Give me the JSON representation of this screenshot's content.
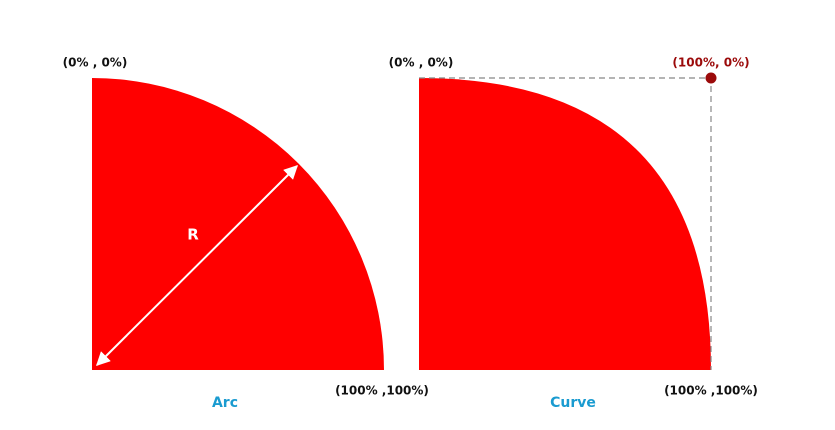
{
  "arc": {
    "top_left": "(0% , 0%)",
    "radius_label": "R",
    "bottom_right": "(100% ,100%)",
    "caption": "Arc"
  },
  "curve": {
    "top_left": "(0% , 0%)",
    "control_point": "(100%, 0%)",
    "bottom_right": "(100% ,100%)",
    "caption": "Curve"
  }
}
